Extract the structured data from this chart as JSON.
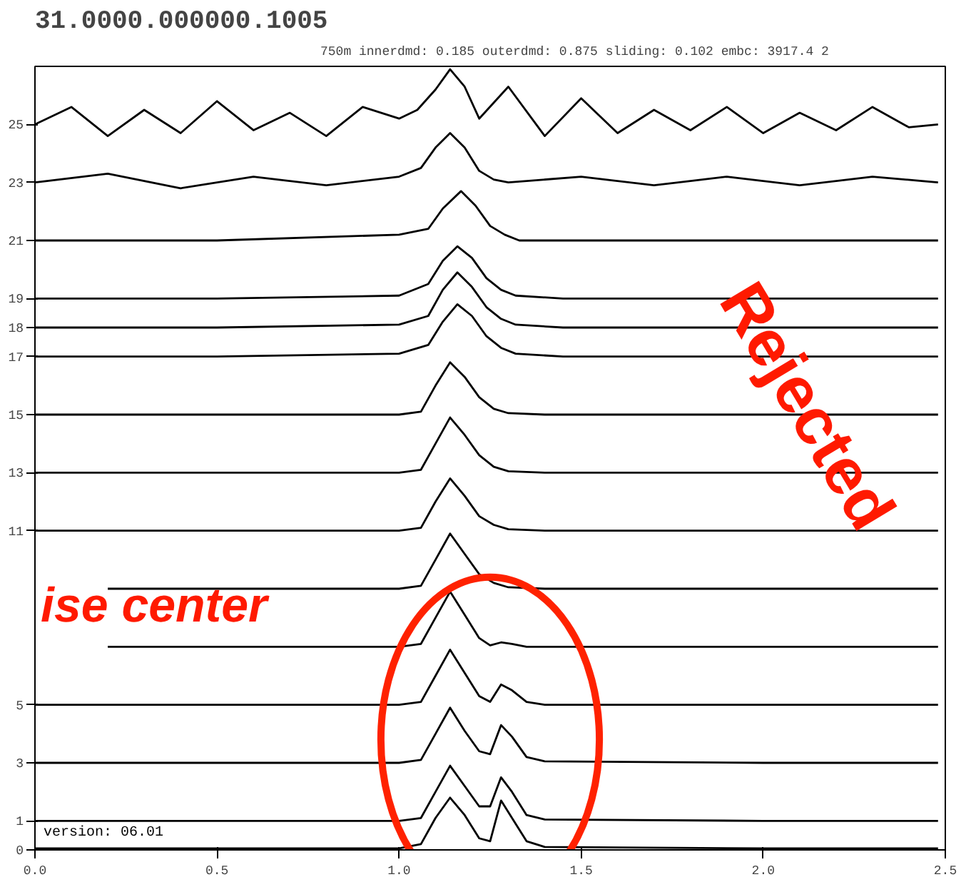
{
  "chart_data": {
    "type": "line",
    "title": "31.0000.000000.1005",
    "subtitle": "750m innerdmd: 0.185 outerdmd: 0.875 sliding: 0.102 embc: 3917.4 2",
    "annotations": [
      "version: 06.01",
      "ise center",
      "Rejected"
    ],
    "xlim": [
      0,
      2.5
    ],
    "ylim": [
      0,
      27
    ],
    "xticks": [
      {
        "value": 0,
        "label": "0.0"
      },
      {
        "value": 0.5,
        "label": "0.5"
      },
      {
        "value": 1,
        "label": "1.0"
      },
      {
        "value": 1.5,
        "label": "1.5"
      },
      {
        "value": 2,
        "label": "2.0"
      },
      {
        "value": 2.5,
        "label": "2.5"
      }
    ],
    "yticks": [
      0,
      1,
      3,
      5,
      11,
      13,
      15,
      17,
      18,
      19,
      21,
      23,
      25
    ],
    "grid": false,
    "line_style": "solid",
    "series": [
      {
        "color": "#000000",
        "x": [
          0,
          0.1,
          0.2,
          0.3,
          0.4,
          0.5,
          0.6,
          0.7,
          0.8,
          0.9,
          1.0,
          1.05,
          1.1,
          1.14,
          1.18,
          1.22,
          1.3,
          1.4,
          1.5,
          1.6,
          1.7,
          1.8,
          1.9,
          2.0,
          2.1,
          2.2,
          2.3,
          2.4,
          2.48
        ],
        "values": [
          25,
          25.6,
          24.6,
          25.5,
          24.7,
          25.8,
          24.8,
          25.4,
          24.6,
          25.6,
          25.2,
          25.5,
          26.2,
          26.9,
          26.3,
          25.2,
          26.3,
          24.6,
          25.9,
          24.7,
          25.5,
          24.8,
          25.6,
          24.7,
          25.4,
          24.8,
          25.6,
          24.9,
          25
        ]
      },
      {
        "color": "#000000",
        "x": [
          0,
          0.2,
          0.4,
          0.6,
          0.8,
          1.0,
          1.06,
          1.1,
          1.14,
          1.18,
          1.22,
          1.26,
          1.3,
          1.5,
          1.7,
          1.9,
          2.1,
          2.3,
          2.48
        ],
        "values": [
          23,
          23.3,
          22.8,
          23.2,
          22.9,
          23.2,
          23.5,
          24.2,
          24.7,
          24.2,
          23.4,
          23.1,
          23,
          23.2,
          22.9,
          23.2,
          22.9,
          23.2,
          23
        ]
      },
      {
        "color": "#000000",
        "x": [
          0,
          0.5,
          1.0,
          1.08,
          1.12,
          1.17,
          1.21,
          1.25,
          1.29,
          1.33,
          1.45,
          2.0,
          2.48
        ],
        "values": [
          21,
          21,
          21.2,
          21.4,
          22.1,
          22.7,
          22.2,
          21.5,
          21.2,
          21,
          21,
          21,
          21
        ]
      },
      {
        "color": "#000000",
        "x": [
          0,
          0.5,
          1.0,
          1.08,
          1.12,
          1.16,
          1.2,
          1.24,
          1.28,
          1.32,
          1.45,
          2.0,
          2.48
        ],
        "values": [
          19,
          19,
          19.1,
          19.5,
          20.3,
          20.8,
          20.4,
          19.7,
          19.3,
          19.1,
          19,
          19,
          19
        ]
      },
      {
        "color": "#000000",
        "x": [
          0,
          0.5,
          1.0,
          1.08,
          1.12,
          1.16,
          1.2,
          1.24,
          1.28,
          1.32,
          1.45,
          2.0,
          2.48
        ],
        "values": [
          18,
          18,
          18.1,
          18.4,
          19.3,
          19.9,
          19.4,
          18.7,
          18.3,
          18.1,
          18,
          18,
          18
        ]
      },
      {
        "color": "#000000",
        "x": [
          0,
          0.5,
          1.0,
          1.08,
          1.12,
          1.16,
          1.2,
          1.24,
          1.28,
          1.32,
          1.45,
          2.0,
          2.48
        ],
        "values": [
          17,
          17,
          17.1,
          17.4,
          18.2,
          18.8,
          18.4,
          17.7,
          17.3,
          17.1,
          17,
          17,
          17
        ]
      },
      {
        "color": "#000000",
        "x": [
          0,
          0.5,
          1.0,
          1.06,
          1.1,
          1.14,
          1.18,
          1.22,
          1.26,
          1.3,
          1.4,
          2.0,
          2.48
        ],
        "values": [
          15,
          15,
          15,
          15.1,
          16,
          16.8,
          16.3,
          15.6,
          15.2,
          15.05,
          15,
          15,
          15
        ]
      },
      {
        "color": "#000000",
        "x": [
          0,
          0.5,
          1.0,
          1.06,
          1.1,
          1.14,
          1.18,
          1.22,
          1.26,
          1.3,
          1.4,
          2.0,
          2.48
        ],
        "values": [
          13,
          13,
          13,
          13.1,
          14,
          14.9,
          14.3,
          13.6,
          13.2,
          13.05,
          13,
          13,
          13
        ]
      },
      {
        "color": "#000000",
        "x": [
          0,
          0.5,
          1.0,
          1.06,
          1.1,
          1.14,
          1.18,
          1.22,
          1.26,
          1.3,
          1.4,
          2.0,
          2.48
        ],
        "values": [
          11,
          11,
          11,
          11.1,
          12,
          12.8,
          12.2,
          11.5,
          11.2,
          11.05,
          11,
          11,
          11
        ]
      },
      {
        "color": "#000000",
        "x": [
          0.2,
          0.5,
          1.0,
          1.06,
          1.1,
          1.14,
          1.18,
          1.22,
          1.26,
          1.3,
          1.4,
          2.0,
          2.48
        ],
        "values": [
          9,
          9,
          9,
          9.1,
          10,
          10.9,
          10.2,
          9.5,
          9.2,
          9.05,
          9,
          9,
          9
        ]
      },
      {
        "color": "#000000",
        "x": [
          0.2,
          0.5,
          1.0,
          1.06,
          1.1,
          1.14,
          1.18,
          1.22,
          1.25,
          1.28,
          1.31,
          1.35,
          1.4,
          2.0,
          2.48
        ],
        "values": [
          7,
          7,
          7,
          7.1,
          8,
          8.9,
          8.1,
          7.3,
          7.05,
          7.15,
          7.1,
          7,
          7,
          7,
          7
        ]
      },
      {
        "color": "#000000",
        "x": [
          0,
          0.5,
          1.0,
          1.06,
          1.1,
          1.14,
          1.18,
          1.22,
          1.25,
          1.28,
          1.31,
          1.35,
          1.4,
          2.0,
          2.48
        ],
        "values": [
          5,
          5,
          5,
          5.1,
          6,
          6.9,
          6.1,
          5.3,
          5.1,
          5.7,
          5.5,
          5.1,
          5,
          5,
          5
        ]
      },
      {
        "color": "#000000",
        "x": [
          0,
          0.5,
          1.0,
          1.06,
          1.1,
          1.14,
          1.18,
          1.22,
          1.25,
          1.28,
          1.31,
          1.35,
          1.4,
          2.0,
          2.48
        ],
        "values": [
          3,
          3,
          3,
          3.1,
          4,
          4.9,
          4.1,
          3.4,
          3.3,
          4.3,
          3.9,
          3.2,
          3.05,
          3,
          3
        ]
      },
      {
        "color": "#000000",
        "x": [
          0,
          0.5,
          1.0,
          1.06,
          1.1,
          1.14,
          1.18,
          1.22,
          1.25,
          1.28,
          1.31,
          1.35,
          1.4,
          2.0,
          2.48
        ],
        "values": [
          1,
          1,
          1,
          1.1,
          2,
          2.9,
          2.2,
          1.5,
          1.5,
          2.5,
          2.0,
          1.2,
          1.05,
          1,
          1
        ]
      },
      {
        "color": "#000000",
        "x": [
          0,
          0.5,
          1.0,
          1.06,
          1.1,
          1.14,
          1.18,
          1.22,
          1.25,
          1.28,
          1.31,
          1.35,
          1.4,
          2.0,
          2.48
        ],
        "values": [
          0.05,
          0.05,
          0.05,
          0.2,
          1.1,
          1.8,
          1.2,
          0.4,
          0.3,
          1.7,
          1.1,
          0.3,
          0.1,
          0.05,
          0.05
        ]
      }
    ]
  }
}
